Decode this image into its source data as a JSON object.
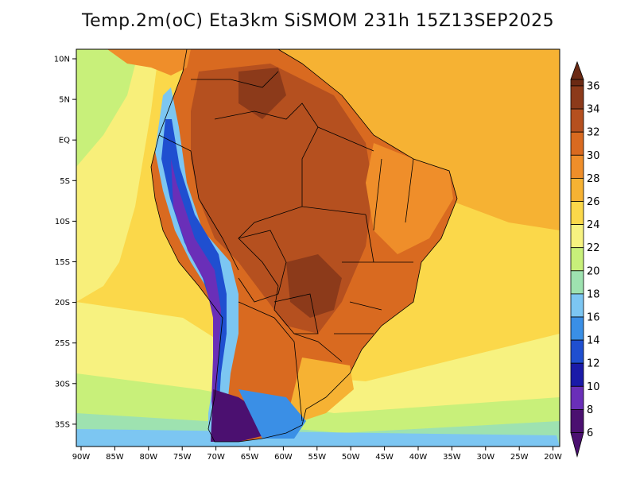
{
  "title": "Temp.2m(oC)  Eta3km  SiSMOM  231h  15Z13SEP2025",
  "map": {
    "lat_labels": [
      "10N",
      "5N",
      "EQ",
      "5S",
      "10S",
      "15S",
      "20S",
      "25S",
      "30S",
      "35S"
    ],
    "lat_values": [
      10,
      5,
      0,
      -5,
      -10,
      -15,
      -20,
      -25,
      -30,
      -35
    ],
    "lon_labels": [
      "90W",
      "85W",
      "80W",
      "75W",
      "70W",
      "65W",
      "60W",
      "55W",
      "50W",
      "45W",
      "40W",
      "35W",
      "30W",
      "25W",
      "20W"
    ],
    "lon_values": [
      -90,
      -85,
      -80,
      -75,
      -70,
      -65,
      -60,
      -55,
      -50,
      -45,
      -40,
      -35,
      -30,
      -25,
      -20
    ]
  },
  "colorbar": {
    "labels": [
      "36",
      "34",
      "32",
      "30",
      "28",
      "26",
      "24",
      "22",
      "20",
      "18",
      "16",
      "14",
      "12",
      "10",
      "8",
      "6"
    ],
    "colors": [
      "#6b2a14",
      "#8c3a1a",
      "#b5501f",
      "#d96a20",
      "#ef8e2a",
      "#f6b233",
      "#fbd84a",
      "#f7f280",
      "#c8f07a",
      "#9ee2b0",
      "#7cc6f2",
      "#3a8fe6",
      "#1f4fd0",
      "#1a1aa8",
      "#6a2fb8",
      "#4b1070"
    ]
  }
}
